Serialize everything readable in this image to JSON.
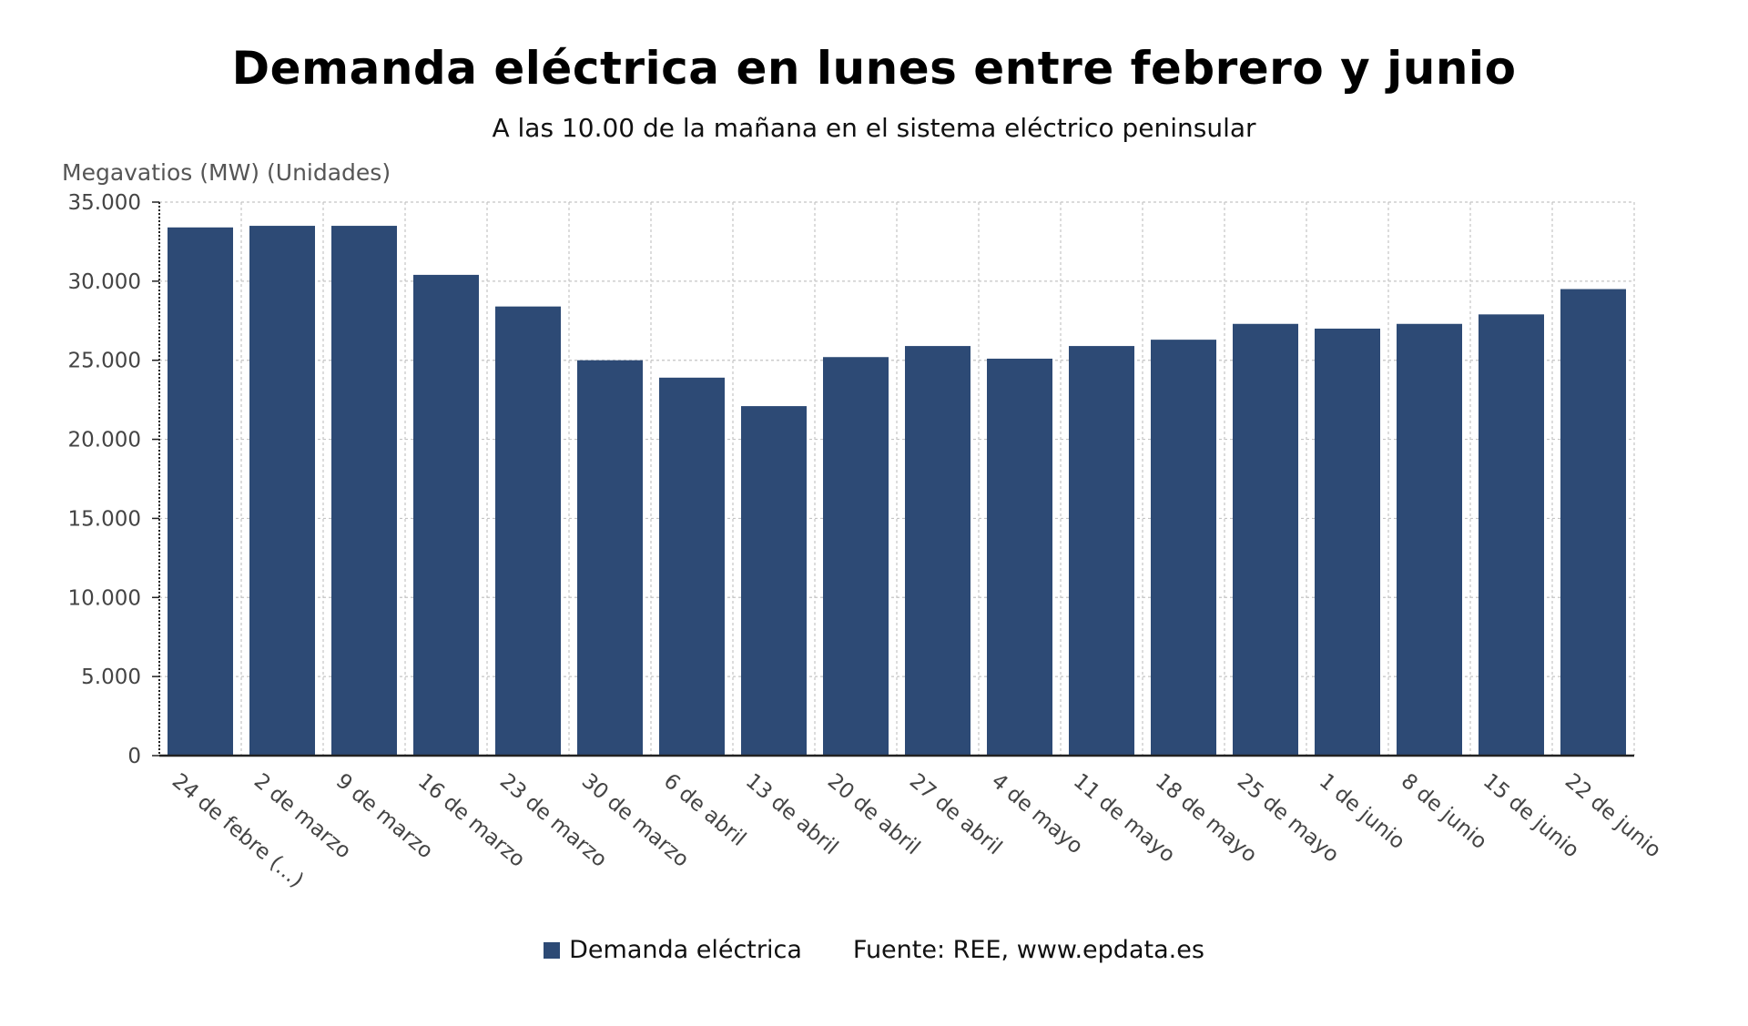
{
  "chart_data": {
    "type": "bar",
    "title": "Demanda eléctrica en lunes entre febrero y junio",
    "subtitle": "A las 10.00 de la mañana en el sistema eléctrico peninsular",
    "ylabel": "Megavatios (MW) (Unidades)",
    "xlabel": "",
    "ylim": [
      0,
      35000
    ],
    "yticks": [
      0,
      5000,
      10000,
      15000,
      20000,
      25000,
      30000,
      35000
    ],
    "ytick_labels": [
      "0",
      "5.000",
      "10.000",
      "15.000",
      "20.000",
      "25.000",
      "30.000",
      "35.000"
    ],
    "categories": [
      "24 de febre (...)",
      "2 de marzo",
      "9 de marzo",
      "16 de marzo",
      "23 de marzo",
      "30 de marzo",
      "6 de abril",
      "13 de abril",
      "20 de abril",
      "27 de abril",
      "4 de mayo",
      "11 de mayo",
      "18 de mayo",
      "25 de mayo",
      "1 de junio",
      "8 de junio",
      "15 de junio",
      "22 de junio"
    ],
    "series": [
      {
        "name": "Demanda eléctrica",
        "color": "#2d4a75",
        "values": [
          33400,
          33500,
          33500,
          30400,
          28400,
          25000,
          23900,
          22100,
          25200,
          25900,
          25100,
          25900,
          26300,
          27300,
          27000,
          27300,
          27900,
          29500
        ]
      }
    ],
    "grid": true,
    "legend_position": "bottom-center",
    "source": "Fuente: REE, www.epdata.es"
  }
}
